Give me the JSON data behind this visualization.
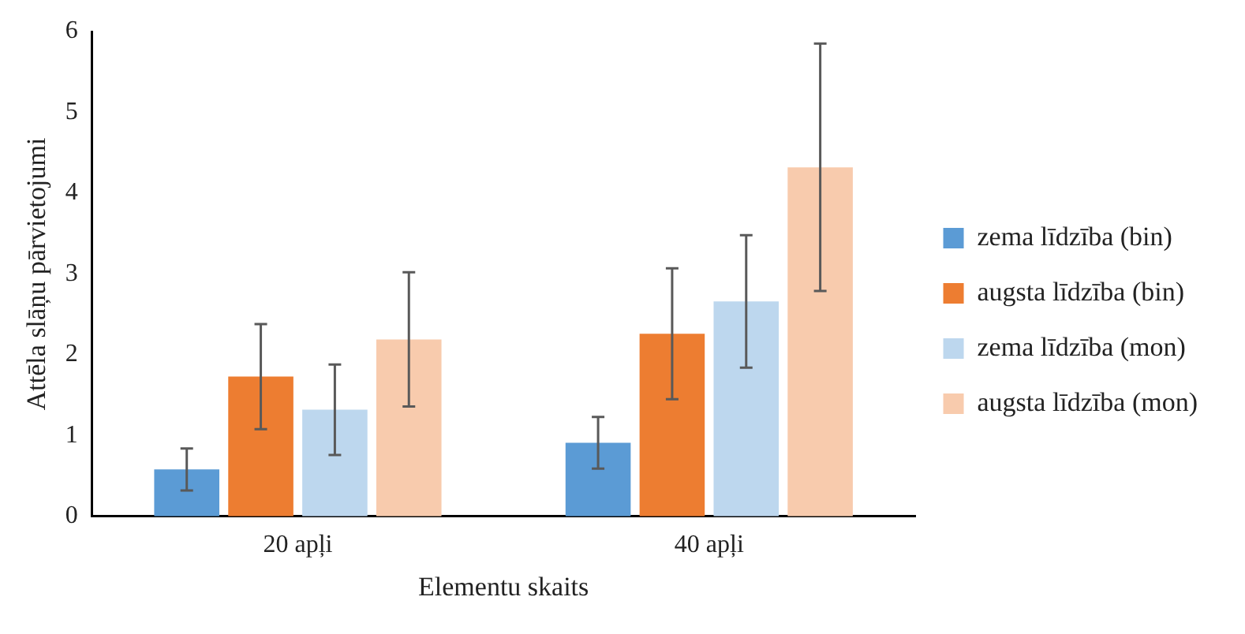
{
  "chart_data": {
    "type": "bar",
    "xlabel": "Elementu skaits",
    "ylabel": "Attēla slāņu pārvietojumi",
    "categories": [
      "20 apļi",
      "40 apļi"
    ],
    "series": [
      {
        "name": "zema līdzība (bin)",
        "color": "#5b9bd5",
        "values": [
          0.58,
          0.91
        ],
        "errors": [
          0.26,
          0.32
        ]
      },
      {
        "name": "augsta līdzība (bin)",
        "color": "#ed7d31",
        "values": [
          1.73,
          2.26
        ],
        "errors": [
          0.65,
          0.81
        ]
      },
      {
        "name": "zema līdzība (mon)",
        "color": "#bdd7ee",
        "values": [
          1.32,
          2.66
        ],
        "errors": [
          0.56,
          0.82
        ]
      },
      {
        "name": "augsta līdzība (mon)",
        "color": "#f8cbad",
        "values": [
          2.19,
          4.32
        ],
        "errors": [
          0.83,
          1.53
        ]
      }
    ],
    "ylim": [
      0,
      6
    ],
    "yticks": [
      0,
      1,
      2,
      3,
      4,
      5,
      6
    ],
    "grid": false,
    "legend": "right"
  }
}
